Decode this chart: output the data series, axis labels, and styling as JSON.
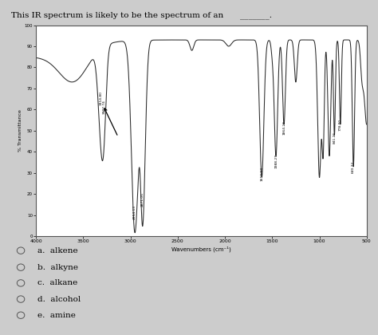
{
  "title": "This IR spectrum is likely to be the spectrum of an _______.",
  "title_plain": "This IR spectrum is likely to be the spectrum of an ",
  "title_underline": "_______.",
  "xlabel": "Wavenumbers (cm-1)",
  "ylabel": "% Transmittance",
  "background_color": "#d8d8d8",
  "plot_bg": "#ffffff",
  "options": [
    [
      "a.",
      "alkene"
    ],
    [
      "b.",
      "alkyne"
    ],
    [
      "c.",
      "alkane"
    ],
    [
      "d.",
      "alcohol"
    ],
    [
      "e.",
      "amine"
    ]
  ]
}
